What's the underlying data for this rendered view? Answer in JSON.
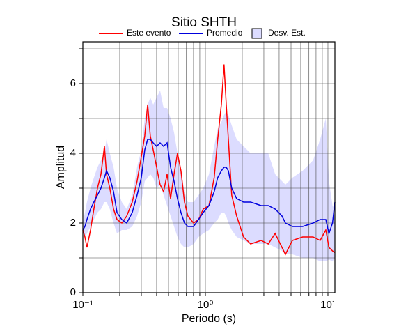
{
  "chart_data": {
    "type": "line",
    "title": "Sitio SHTH",
    "x_label": "Periodo (s)",
    "y_label": "Amplitud",
    "xscale": "log",
    "grid": true,
    "xlim": [
      0.1,
      11.4
    ],
    "ylim": [
      0,
      7.2
    ],
    "xticks": [
      {
        "value": 0.1,
        "label": "10⁻¹"
      },
      {
        "value": 1,
        "label": "10⁰"
      },
      {
        "value": 10,
        "label": "10¹"
      }
    ],
    "x_minor_ticks": [
      0.2,
      0.3,
      0.4,
      0.5,
      0.6,
      0.7,
      0.8,
      0.9,
      2,
      3,
      4,
      5,
      6,
      7,
      8,
      9
    ],
    "yticks": [
      0,
      2,
      4,
      6
    ],
    "y_minor_ticks": [
      1,
      3,
      5,
      7
    ],
    "x": [
      0.1,
      0.104,
      0.108,
      0.1155,
      0.123,
      0.1316,
      0.1405,
      0.15,
      0.156,
      0.166,
      0.178,
      0.19,
      0.208,
      0.228,
      0.253,
      0.277,
      0.3,
      0.32,
      0.338,
      0.355,
      0.375,
      0.4,
      0.427,
      0.456,
      0.487,
      0.52,
      0.555,
      0.592,
      0.632,
      0.675,
      0.72,
      0.8,
      0.88,
      0.96,
      1.07,
      1.18,
      1.26,
      1.35,
      1.42,
      1.48,
      1.54,
      1.64,
      1.8,
      2.05,
      2.34,
      2.85,
      3.26,
      3.71,
      4.22,
      4.5,
      5.13,
      6.22,
      7.57,
      8.64,
      9.61,
      10.2,
      10.9,
      11.4
    ],
    "band": {
      "name": "Desv. Est.",
      "color": "#dcdcff",
      "lower": [
        1.7,
        1.6,
        1.7,
        1.9,
        2.1,
        2.3,
        2.4,
        2.6,
        2.6,
        2.4,
        2.0,
        1.7,
        1.8,
        1.8,
        1.9,
        2.2,
        2.6,
        3.2,
        3.3,
        3.4,
        3.3,
        3.0,
        3.1,
        2.8,
        2.5,
        2.2,
        1.9,
        1.6,
        1.4,
        1.3,
        1.3,
        1.4,
        1.6,
        1.7,
        1.8,
        2.0,
        2.1,
        2.3,
        2.3,
        2.2,
        2.0,
        1.8,
        1.6,
        1.5,
        1.4,
        1.4,
        1.4,
        1.3,
        1.2,
        1.1,
        1.1,
        1.0,
        1.0,
        0.9,
        0.9,
        0.95,
        0.9,
        1.0
      ],
      "upper": [
        2.0,
        2.3,
        2.6,
        3.0,
        3.3,
        3.6,
        3.8,
        4.0,
        4.4,
        4.0,
        3.6,
        3.0,
        2.6,
        2.4,
        2.8,
        3.6,
        4.1,
        5.0,
        5.4,
        5.6,
        5.4,
        5.6,
        5.8,
        5.3,
        5.3,
        5.0,
        4.6,
        4.0,
        3.5,
        2.9,
        2.6,
        2.6,
        2.8,
        3.0,
        3.4,
        4.2,
        4.7,
        4.9,
        5.1,
        5.2,
        5.1,
        4.8,
        4.4,
        4.2,
        4.0,
        4.0,
        4.0,
        3.4,
        3.2,
        3.1,
        3.3,
        3.5,
        3.8,
        4.4,
        5.0,
        3.2,
        2.5,
        2.4
      ]
    },
    "series": [
      {
        "name": "Este evento",
        "color": "#ff0000",
        "values": [
          1.8,
          1.6,
          1.3,
          1.8,
          2.4,
          3.0,
          3.4,
          4.2,
          3.4,
          3.0,
          2.4,
          2.1,
          2.0,
          2.2,
          2.6,
          3.2,
          3.9,
          4.5,
          5.4,
          4.5,
          4.1,
          3.6,
          3.1,
          2.9,
          3.4,
          2.7,
          3.4,
          4.0,
          3.5,
          2.6,
          2.2,
          2.0,
          2.1,
          2.4,
          2.5,
          3.3,
          4.4,
          5.4,
          6.55,
          5.4,
          4.4,
          2.8,
          2.2,
          1.6,
          1.4,
          1.5,
          1.4,
          1.7,
          1.3,
          1.1,
          1.5,
          1.6,
          1.6,
          1.5,
          1.8,
          1.3,
          1.2,
          1.15
        ]
      },
      {
        "name": "Promedio",
        "color": "#0000dd",
        "values": [
          1.8,
          1.9,
          2.1,
          2.4,
          2.6,
          2.8,
          3.0,
          3.3,
          3.5,
          3.3,
          2.9,
          2.3,
          2.1,
          2.0,
          2.3,
          2.8,
          3.3,
          4.1,
          4.4,
          4.4,
          4.3,
          4.2,
          4.3,
          4.2,
          4.3,
          3.6,
          3.2,
          2.7,
          2.3,
          2.0,
          1.9,
          1.9,
          2.1,
          2.3,
          2.5,
          2.9,
          3.3,
          3.5,
          3.6,
          3.6,
          3.5,
          3.0,
          2.7,
          2.6,
          2.6,
          2.5,
          2.5,
          2.4,
          2.2,
          2.0,
          1.9,
          1.9,
          2.0,
          2.1,
          2.1,
          1.7,
          2.0,
          2.6
        ]
      }
    ]
  }
}
